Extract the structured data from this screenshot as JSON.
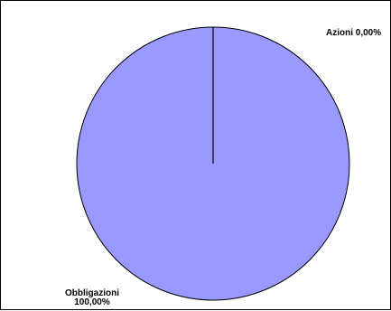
{
  "chart_data": {
    "type": "pie",
    "slices": [
      {
        "label": "Obbligazioni",
        "value": 100.0,
        "display_percent": "100,00%",
        "color": "#9999ff"
      },
      {
        "label": "Azioni",
        "value": 0.0,
        "display_percent": "0,00%",
        "color": "#993366"
      }
    ],
    "edge_color": "#000000",
    "legend": "none"
  }
}
